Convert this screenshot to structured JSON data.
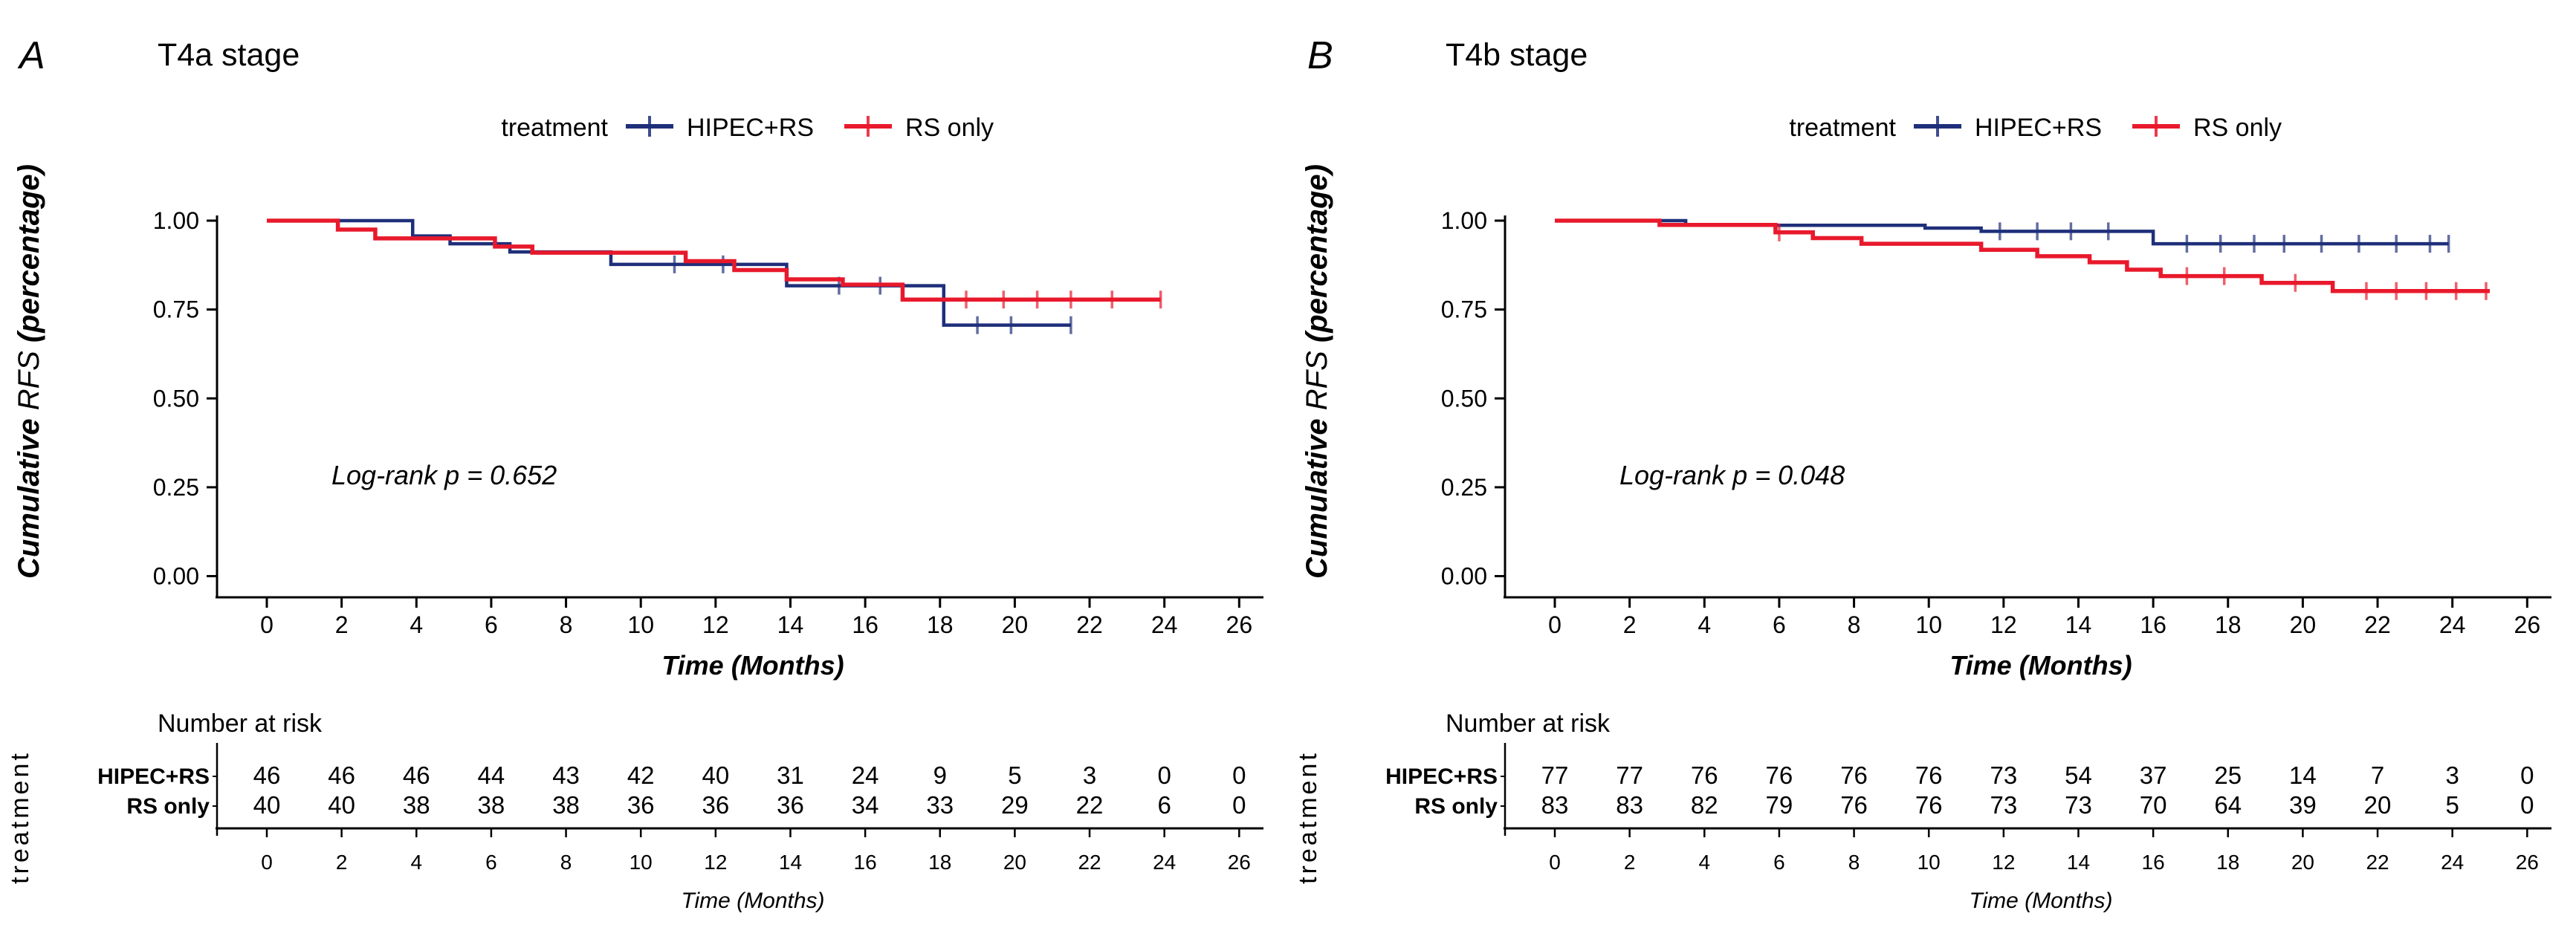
{
  "figure": {
    "background": "#ffffff"
  },
  "chart_data": [
    {
      "type": "line",
      "subtype": "kaplan-meier-survival",
      "panel_letter": "A",
      "title": "T4a stage",
      "xlabel": "Time (Months)",
      "ylabel": "Cumulative RFS (percentage)",
      "ylabel_parts": [
        "Cumulative ",
        "RFS ",
        "(percentage)"
      ],
      "legend_title": "treatment",
      "legend_position": "top",
      "annotation": "Log-rank  p = 0.652",
      "grid": false,
      "xlim": [
        0,
        26
      ],
      "ylim": [
        0,
        1
      ],
      "xticks": [
        0,
        2,
        4,
        6,
        8,
        10,
        12,
        14,
        16,
        18,
        20,
        22,
        24,
        26
      ],
      "ytick_labels": [
        "1.00",
        "0.75",
        "0.50",
        "0.25",
        "0.00"
      ],
      "ytick_values": [
        1.0,
        0.75,
        0.5,
        0.25,
        0.0
      ],
      "series": [
        {
          "name": "HIPEC+RS",
          "color": "#1f2f7a",
          "steps": [
            [
              0,
              1.0
            ],
            [
              3.9,
              0.957
            ],
            [
              4.9,
              0.935
            ],
            [
              6.5,
              0.912
            ],
            [
              9.2,
              0.877
            ],
            [
              13.9,
              0.817
            ],
            [
              18.1,
              0.706
            ]
          ],
          "end": 21.5,
          "censor_times": [
            10.9,
            12.2,
            15.3,
            16.4,
            19.0,
            19.9,
            21.5
          ]
        },
        {
          "name": "RS only",
          "color": "#e8192c",
          "steps": [
            [
              0,
              1.0
            ],
            [
              1.9,
              0.975
            ],
            [
              2.9,
              0.95
            ],
            [
              6.1,
              0.927
            ],
            [
              7.1,
              0.91
            ],
            [
              11.2,
              0.886
            ],
            [
              12.5,
              0.861
            ],
            [
              13.9,
              0.835
            ],
            [
              15.4,
              0.82
            ],
            [
              17.0,
              0.778
            ]
          ],
          "end": 23.9,
          "censor_times": [
            18.7,
            19.7,
            20.6,
            21.5,
            22.6,
            23.9
          ]
        }
      ],
      "risk_table": {
        "title": "Number at risk",
        "side_label": "treatment",
        "xlabel": "Time (Months)",
        "times": [
          0,
          2,
          4,
          6,
          8,
          10,
          12,
          14,
          16,
          18,
          20,
          22,
          24,
          26
        ],
        "rows": [
          {
            "name": "HIPEC+RS",
            "counts": [
              46,
              46,
              46,
              44,
              43,
              42,
              40,
              31,
              24,
              9,
              5,
              3,
              0,
              0
            ]
          },
          {
            "name": "RS only",
            "counts": [
              40,
              40,
              38,
              38,
              38,
              36,
              36,
              36,
              34,
              33,
              29,
              22,
              6,
              0
            ]
          }
        ]
      }
    },
    {
      "type": "line",
      "subtype": "kaplan-meier-survival",
      "panel_letter": "B",
      "title": "T4b stage",
      "xlabel": "Time (Months)",
      "ylabel": "Cumulative RFS (percentage)",
      "ylabel_parts": [
        "Cumulative ",
        "RFS ",
        "(percentage)"
      ],
      "legend_title": "treatment",
      "legend_position": "top",
      "annotation": "Log-rank  p = 0.048",
      "grid": false,
      "xlim": [
        0,
        26
      ],
      "ylim": [
        0,
        1
      ],
      "xticks": [
        0,
        2,
        4,
        6,
        8,
        10,
        12,
        14,
        16,
        18,
        20,
        22,
        24,
        26
      ],
      "ytick_labels": [
        "1.00",
        "0.75",
        "0.50",
        "0.25",
        "0.00"
      ],
      "ytick_values": [
        1.0,
        0.75,
        0.5,
        0.25,
        0.0
      ],
      "series": [
        {
          "name": "HIPEC+RS",
          "color": "#1f2f7a",
          "steps": [
            [
              0,
              1.0
            ],
            [
              3.5,
              0.987
            ],
            [
              9.9,
              0.979
            ],
            [
              11.4,
              0.97
            ],
            [
              16.0,
              0.935
            ]
          ],
          "end": 23.9,
          "censor_times": [
            11.9,
            12.9,
            13.8,
            14.8,
            16.9,
            17.8,
            18.7,
            19.5,
            20.5,
            21.5,
            22.5,
            23.4,
            23.9
          ]
        },
        {
          "name": "RS only",
          "color": "#e8192c",
          "steps": [
            [
              0,
              1.0
            ],
            [
              2.8,
              0.988
            ],
            [
              5.9,
              0.967
            ],
            [
              6.9,
              0.951
            ],
            [
              8.2,
              0.935
            ],
            [
              11.4,
              0.918
            ],
            [
              12.9,
              0.9
            ],
            [
              14.3,
              0.883
            ],
            [
              15.3,
              0.862
            ],
            [
              16.2,
              0.844
            ],
            [
              18.9,
              0.825
            ],
            [
              20.8,
              0.802
            ]
          ],
          "end": 25.0,
          "censor_times": [
            6.0,
            16.9,
            17.9,
            19.8,
            21.7,
            22.5,
            23.3,
            24.1,
            24.9
          ]
        }
      ],
      "risk_table": {
        "title": "Number at risk",
        "side_label": "treatment",
        "xlabel": "Time (Months)",
        "times": [
          0,
          2,
          4,
          6,
          8,
          10,
          12,
          14,
          16,
          18,
          20,
          22,
          24,
          26
        ],
        "rows": [
          {
            "name": "HIPEC+RS",
            "counts": [
              77,
              77,
              76,
              76,
              76,
              76,
              73,
              54,
              37,
              25,
              14,
              7,
              3,
              0
            ]
          },
          {
            "name": "RS only",
            "counts": [
              83,
              83,
              82,
              79,
              76,
              76,
              73,
              73,
              70,
              64,
              39,
              20,
              5,
              0
            ]
          }
        ]
      }
    }
  ]
}
